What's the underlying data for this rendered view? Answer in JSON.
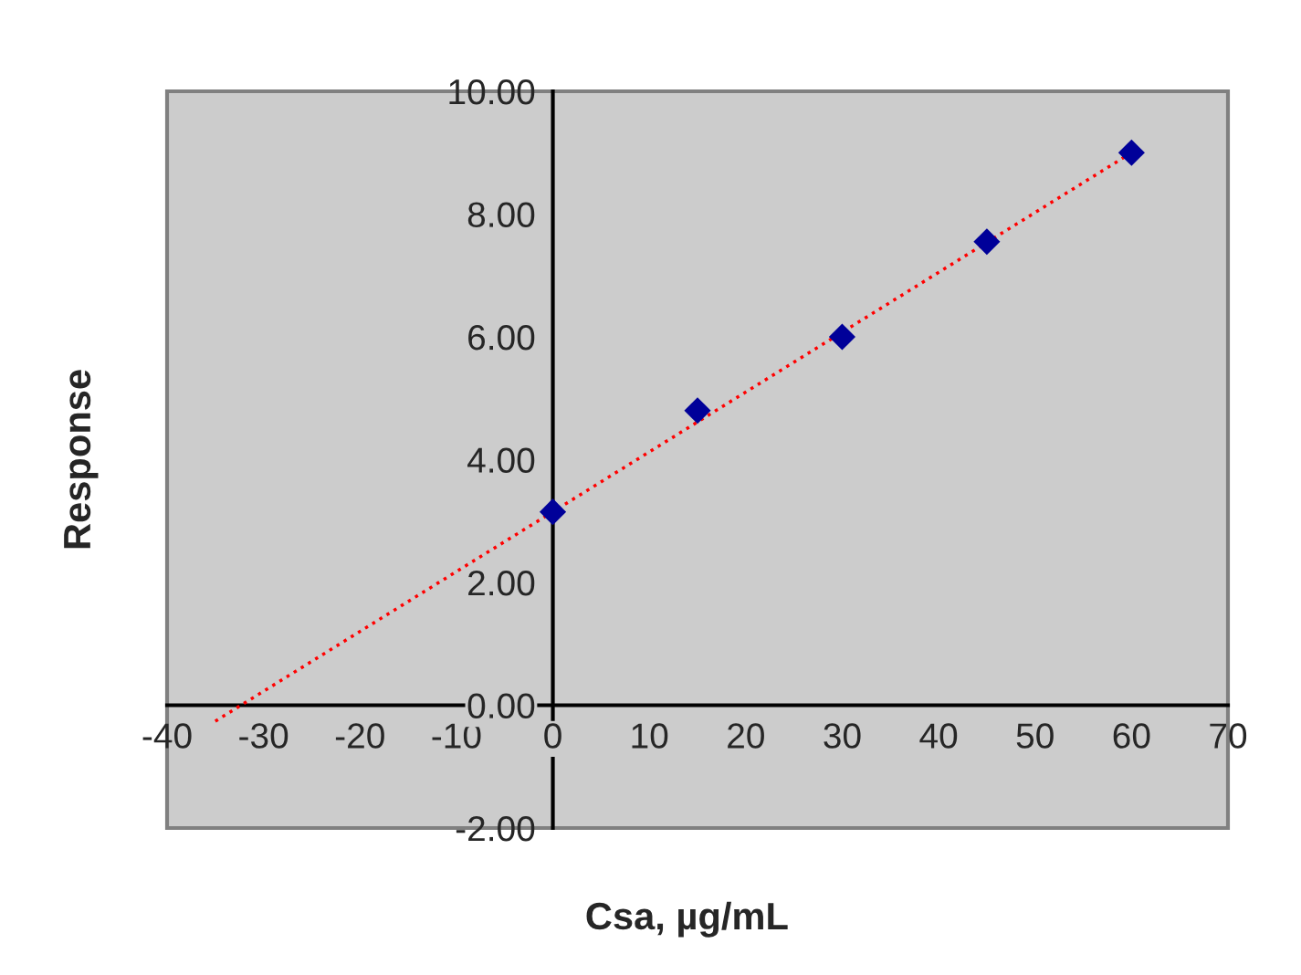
{
  "chart_data": {
    "type": "scatter",
    "xlabel": "Csa, µg/mL",
    "ylabel": "Response",
    "xlim": [
      -40,
      70
    ],
    "xticks": [
      -40,
      -30,
      -20,
      -10,
      0,
      10,
      20,
      30,
      40,
      50,
      60,
      70
    ],
    "ylim": [
      -2,
      10
    ],
    "yticks": [
      {
        "value": -2,
        "label": "-2.00"
      },
      {
        "value": 0,
        "label": "0.00"
      },
      {
        "value": 2,
        "label": "2.00"
      },
      {
        "value": 4,
        "label": "4.00"
      },
      {
        "value": 6,
        "label": "6.00"
      },
      {
        "value": 8,
        "label": "8.00"
      },
      {
        "value": 10,
        "label": "10.00"
      }
    ],
    "grid": false,
    "legend": false,
    "series": [
      {
        "type": "line",
        "color": "#ff0000",
        "line_style": "dotted",
        "marker": "none",
        "x": [
          -35,
          60
        ],
        "values": [
          -0.26,
          9.0
        ]
      },
      {
        "color": "#000099",
        "marker": "diamond",
        "x": [
          0,
          15,
          30,
          45,
          60
        ],
        "values": [
          3.15,
          4.8,
          6.0,
          7.55,
          9.0
        ]
      }
    ]
  }
}
